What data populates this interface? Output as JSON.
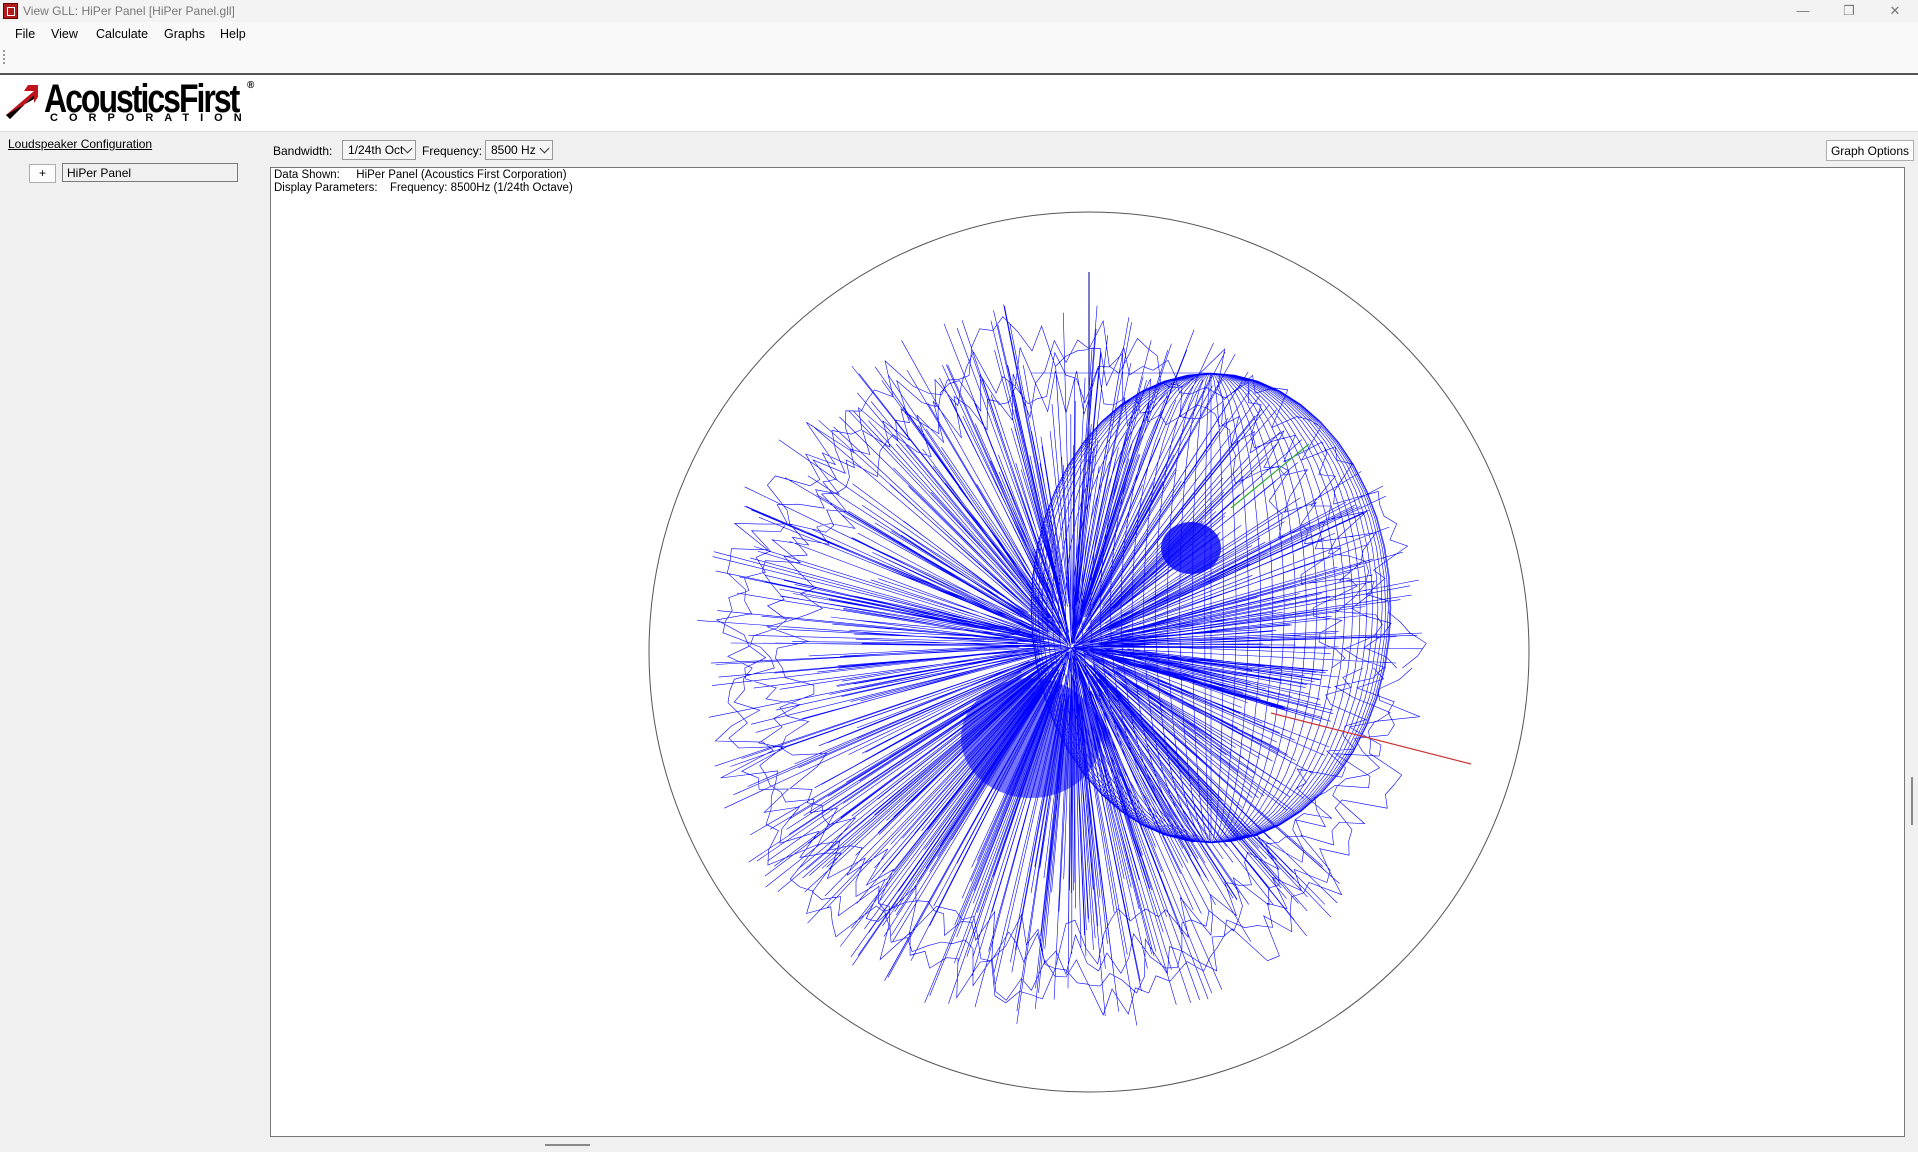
{
  "window": {
    "title": "View GLL: HiPer Panel [HiPer Panel.gll]",
    "controls": [
      "minimize",
      "restore",
      "close"
    ]
  },
  "menu": [
    "File",
    "View",
    "Calculate",
    "Graphs",
    "Help"
  ],
  "logo": {
    "name": "AcousticsFirst",
    "registered": "®",
    "subtitle": "CORPORATION"
  },
  "sidebar": {
    "heading": "Loudspeaker Configuration",
    "expand_label": "+",
    "item": "HiPer Panel"
  },
  "controls": {
    "bandwidth_label": "Bandwidth:",
    "bandwidth_value": "1/24th Oct",
    "frequency_label": "Frequency:",
    "frequency_value": "8500 Hz",
    "graph_options": "Graph Options"
  },
  "plot": {
    "data_shown_label": "Data Shown:",
    "data_shown_value": "HiPer Panel (Acoustics First Corporation)",
    "display_params_label": "Display Parameters:",
    "display_params_value": "Frequency: 8500Hz (1/24th Octave)",
    "balloon_color": "#0000ff",
    "axis_colors": {
      "x": "#cc3333",
      "y": "#33aa33",
      "z": "#3333aa"
    }
  }
}
